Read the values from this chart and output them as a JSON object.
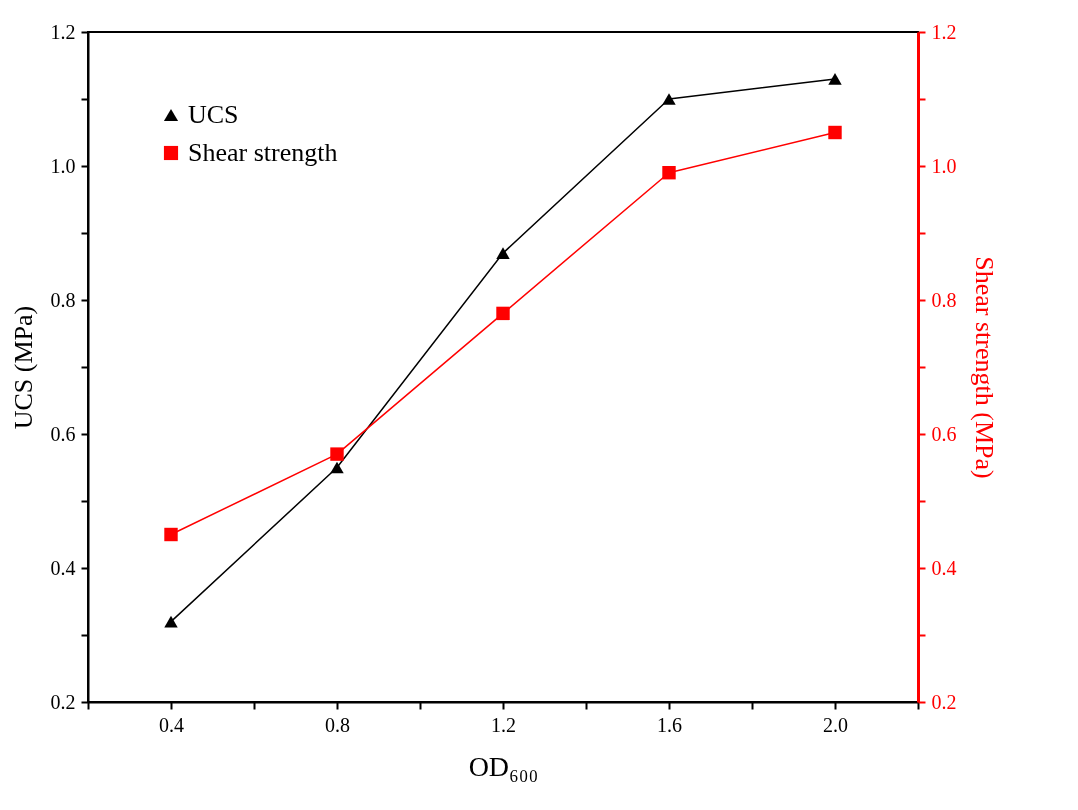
{
  "chart_data": {
    "type": "line",
    "xlabel": "OD₆₀₀",
    "ylabel": "UCS (MPa)",
    "y2label": "Shear strength (MPa)",
    "x": [
      0.4,
      0.8,
      1.2,
      1.6,
      2.0
    ],
    "series": [
      {
        "name": "UCS",
        "color": "#000000",
        "marker": "triangle",
        "values": [
          0.32,
          0.55,
          0.87,
          1.1,
          1.13
        ]
      },
      {
        "name": "Shear strength",
        "color": "#ff0000",
        "marker": "square",
        "axis": "y2",
        "values": [
          0.45,
          0.57,
          0.78,
          0.99,
          1.05
        ]
      }
    ],
    "xlim": [
      0.2,
      2.2
    ],
    "xticks": [
      {
        "value": 0.2,
        "label": null
      },
      0.4,
      {
        "value": 0.6,
        "label": null
      },
      0.8,
      {
        "value": 1.0,
        "label": null
      },
      1.2,
      {
        "value": 1.4,
        "label": null
      },
      1.6,
      {
        "value": 1.8,
        "label": null
      },
      {
        "value": 2,
        "label": "2.0"
      },
      {
        "value": 2.2,
        "label": null
      }
    ],
    "ylim": [
      0.2,
      1.2
    ],
    "yticks": [
      0.2,
      {
        "value": 0.3,
        "label": null
      },
      0.4,
      {
        "value": 0.5,
        "label": null
      },
      0.6,
      {
        "value": 0.7,
        "label": null
      },
      0.8,
      {
        "value": 0.9,
        "label": null
      },
      {
        "value": 1,
        "label": "1.0"
      },
      {
        "value": 1.1,
        "label": null
      },
      1.2
    ],
    "y2lim": [
      0.2,
      1.2
    ],
    "y2ticks": [
      0.2,
      {
        "value": 0.3,
        "label": null
      },
      0.4,
      {
        "value": 0.5,
        "label": null
      },
      0.6,
      {
        "value": 0.7,
        "label": null
      },
      0.8,
      {
        "value": 0.9,
        "label": null
      },
      {
        "value": 1,
        "label": "1.0"
      },
      {
        "value": 1.1,
        "label": null
      },
      1.2
    ],
    "grid": false,
    "legend": "top left"
  }
}
